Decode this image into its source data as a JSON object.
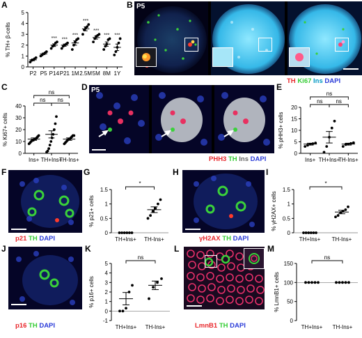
{
  "panels": {
    "A": {
      "letter": "A"
    },
    "B": {
      "letter": "B",
      "stage": "P5",
      "legend": [
        {
          "text": "TH",
          "color": "#e8262a"
        },
        {
          "text": "Ki67",
          "color": "#33cc33"
        },
        {
          "text": "Ins",
          "color": "#44e0ff"
        },
        {
          "text": "DAPI",
          "color": "#2a3bd8"
        }
      ]
    },
    "C": {
      "letter": "C"
    },
    "D": {
      "letter": "D",
      "stage": "P5",
      "legend": [
        {
          "text": "PHH3",
          "color": "#e8262a"
        },
        {
          "text": "TH",
          "color": "#33cc33"
        },
        {
          "text": "Ins",
          "color": "#dddddd"
        },
        {
          "text": "DAPI",
          "color": "#2a3bd8"
        }
      ]
    },
    "E": {
      "letter": "E"
    },
    "F": {
      "letter": "F",
      "legend": [
        {
          "text": "p21",
          "color": "#e8262a"
        },
        {
          "text": "TH",
          "color": "#33cc33"
        },
        {
          "text": "DAPI",
          "color": "#2a3bd8"
        }
      ]
    },
    "G": {
      "letter": "G"
    },
    "H": {
      "letter": "H",
      "legend": [
        {
          "text": "γH2AX",
          "color": "#e8262a"
        },
        {
          "text": "TH",
          "color": "#33cc33"
        },
        {
          "text": "DAPI",
          "color": "#2a3bd8"
        }
      ]
    },
    "I": {
      "letter": "I"
    },
    "J": {
      "letter": "J",
      "legend": [
        {
          "text": "p16",
          "color": "#e8262a"
        },
        {
          "text": "TH",
          "color": "#33cc33"
        },
        {
          "text": "DAPI",
          "color": "#2a3bd8"
        }
      ]
    },
    "K": {
      "letter": "K"
    },
    "L": {
      "letter": "L",
      "legend": [
        {
          "text": "LmnB1",
          "color": "#e8262a"
        },
        {
          "text": "TH",
          "color": "#33cc33"
        },
        {
          "text": "DAPI",
          "color": "#2a3bd8"
        }
      ]
    },
    "M": {
      "letter": "M"
    }
  },
  "chart_data": [
    {
      "panel": "A",
      "type": "scatter",
      "ylabel": "% TH+ β-cells",
      "ylim": [
        0,
        5
      ],
      "yticks": [
        0,
        1,
        2,
        3,
        4,
        5
      ],
      "categories": [
        "P2",
        "P5",
        "P14",
        "P21",
        "1M",
        "2.5M",
        "5M",
        "8M",
        "1Y"
      ],
      "points": [
        [
          0.45,
          0.6,
          0.65,
          0.75,
          0.85
        ],
        [
          1.0,
          1.1,
          1.2,
          1.3,
          1.4
        ],
        [
          1.7,
          1.9,
          2.0,
          2.2,
          2.3
        ],
        [
          1.7,
          1.9,
          2.0,
          2.1,
          2.2
        ],
        [
          1.6,
          2.0,
          2.3,
          2.5,
          2.6
        ],
        [
          3.0,
          3.4,
          3.6,
          3.7,
          3.9
        ],
        [
          2.3,
          2.6,
          2.8,
          2.9,
          3.0
        ],
        [
          1.6,
          1.9,
          2.1,
          2.5,
          2.6
        ],
        [
          1.1,
          1.4,
          1.8,
          2.2,
          2.6
        ]
      ],
      "means": [
        0.65,
        1.2,
        2.0,
        2.0,
        2.2,
        3.5,
        2.7,
        2.1,
        1.8
      ],
      "sems": [
        0.08,
        0.07,
        0.12,
        0.1,
        0.2,
        0.18,
        0.14,
        0.2,
        0.3
      ],
      "sig": [
        "",
        "",
        "***",
        "***",
        "***",
        "***",
        "***",
        "***",
        "***"
      ]
    },
    {
      "panel": "C",
      "type": "scatter",
      "ylabel": "% Ki67+ cells",
      "ylim": [
        0,
        40
      ],
      "yticks": [
        0,
        10,
        20,
        30,
        40
      ],
      "categories": [
        "Ins+",
        "TH+Ins+",
        "TH-Ins+"
      ],
      "points": [
        [
          8,
          9,
          10,
          11,
          11,
          12,
          12,
          13,
          14,
          15
        ],
        [
          1,
          2,
          4,
          7,
          10,
          13,
          16,
          20,
          25,
          31
        ],
        [
          8,
          9,
          10,
          11,
          12,
          12,
          13,
          14,
          15,
          15
        ]
      ],
      "means": [
        12,
        16,
        12
      ],
      "sems": [
        1,
        3,
        1
      ],
      "comparisons": [
        {
          "from": 0,
          "to": 2,
          "label": "ns",
          "level": 1
        },
        {
          "from": 0,
          "to": 1,
          "label": "ns",
          "level": 0
        },
        {
          "from": 1,
          "to": 2,
          "label": "ns",
          "level": 0
        }
      ]
    },
    {
      "panel": "E",
      "type": "scatter",
      "ylabel": "% pHH3+ cells",
      "ylim": [
        0,
        20
      ],
      "yticks": [
        0,
        5,
        10,
        15,
        20
      ],
      "categories": [
        "Ins+",
        "TH+Ins+",
        "TH-Ins+"
      ],
      "points": [
        [
          3,
          3.5,
          4,
          4.2,
          4.5
        ],
        [
          0.5,
          3,
          7,
          11,
          14
        ],
        [
          3,
          3.8,
          4,
          4.3,
          4.6
        ]
      ],
      "means": [
        4,
        7,
        4
      ],
      "sems": [
        0.4,
        2.5,
        0.4
      ],
      "comparisons": [
        {
          "from": 0,
          "to": 2,
          "label": "ns",
          "level": 1
        },
        {
          "from": 0,
          "to": 1,
          "label": "ns",
          "level": 0
        },
        {
          "from": 1,
          "to": 2,
          "label": "ns",
          "level": 0
        }
      ]
    },
    {
      "panel": "G",
      "type": "scatter",
      "ylabel": "% p21+ cells",
      "ylim": [
        0,
        1.5
      ],
      "yticks": [
        0,
        0.5,
        1.0,
        1.5
      ],
      "categories": [
        "TH+Ins+",
        "TH-Ins+"
      ],
      "points": [
        [
          0,
          0,
          0,
          0,
          0,
          0
        ],
        [
          0.5,
          0.6,
          0.75,
          0.85,
          1.0,
          1.15
        ]
      ],
      "means": [
        0,
        0.8
      ],
      "sems": [
        0,
        0.1
      ],
      "comparisons": [
        {
          "from": 0,
          "to": 1,
          "label": "*",
          "level": 0
        }
      ]
    },
    {
      "panel": "I",
      "type": "scatter",
      "ylabel": "% γH2AX+ cells",
      "ylim": [
        0,
        1.5
      ],
      "yticks": [
        0,
        0.5,
        1.0,
        1.5
      ],
      "categories": [
        "TH+Ins+",
        "TH-Ins+"
      ],
      "points": [
        [
          0,
          0,
          0,
          0,
          0,
          0
        ],
        [
          0.55,
          0.6,
          0.7,
          0.75,
          0.8,
          0.9
        ]
      ],
      "means": [
        0,
        0.72
      ],
      "sems": [
        0,
        0.06
      ],
      "comparisons": [
        {
          "from": 0,
          "to": 1,
          "label": "*",
          "level": 0
        }
      ]
    },
    {
      "panel": "K",
      "type": "scatter",
      "ylabel": "% p16+ cells",
      "ylim": [
        -1,
        5
      ],
      "yticks": [
        -1,
        0,
        1,
        2,
        3,
        4,
        5
      ],
      "categories": [
        "TH+Ins+",
        "TH-Ins+"
      ],
      "points": [
        [
          0,
          0,
          0.3,
          2.0,
          2.7
        ],
        [
          1.3,
          2.5,
          3.0,
          3.4
        ]
      ],
      "means": [
        1.3,
        2.7
      ],
      "sems": [
        0.65,
        0.45
      ],
      "comparisons": [
        {
          "from": 0,
          "to": 1,
          "label": "ns",
          "level": 0
        }
      ]
    },
    {
      "panel": "M",
      "type": "scatter",
      "ylabel": "% LmnB1+ cells",
      "ylim": [
        0,
        150
      ],
      "yticks": [
        0,
        50,
        100,
        150
      ],
      "categories": [
        "TH+Ins+",
        "TH-Ins+"
      ],
      "points": [
        [
          100,
          100,
          100,
          100,
          100
        ],
        [
          100,
          100,
          100,
          100,
          100
        ]
      ],
      "means": [
        100,
        100
      ],
      "sems": [
        0,
        0
      ],
      "comparisons": [
        {
          "from": 0,
          "to": 1,
          "label": "ns",
          "level": 0
        }
      ]
    }
  ]
}
